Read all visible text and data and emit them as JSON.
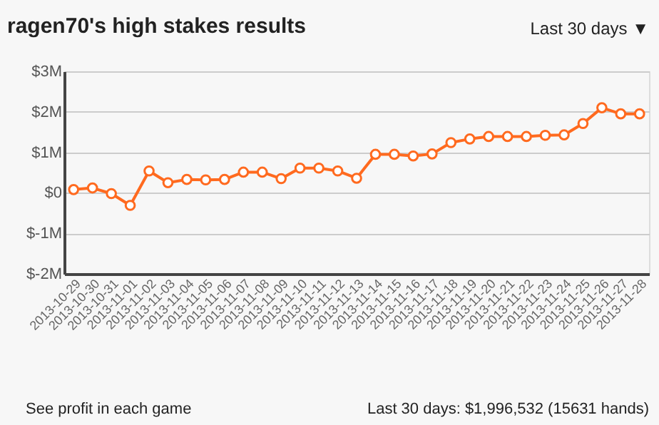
{
  "chart_data": {
    "type": "line",
    "title": "ragen70's high stakes results",
    "categories": [
      "2013-10-29",
      "2013-10-30",
      "2013-10-31",
      "2013-11-01",
      "2013-11-02",
      "2013-11-03",
      "2013-11-04",
      "2013-11-05",
      "2013-11-06",
      "2013-11-07",
      "2013-11-08",
      "2013-11-09",
      "2013-11-10",
      "2013-11-11",
      "2013-11-12",
      "2013-11-13",
      "2013-11-14",
      "2013-11-15",
      "2013-11-16",
      "2013-11-17",
      "2013-11-18",
      "2013-11-19",
      "2013-11-20",
      "2013-11-21",
      "2013-11-22",
      "2013-11-23",
      "2013-11-24",
      "2013-11-25",
      "2013-11-26",
      "2013-11-27",
      "2013-11-28"
    ],
    "series": [
      {
        "color": "#ff6a1f",
        "values": [
          0.08,
          0.12,
          -0.02,
          -0.31,
          0.54,
          0.25,
          0.33,
          0.32,
          0.33,
          0.51,
          0.51,
          0.35,
          0.61,
          0.61,
          0.54,
          0.36,
          0.95,
          0.95,
          0.91,
          0.96,
          1.24,
          1.33,
          1.39,
          1.39,
          1.39,
          1.42,
          1.43,
          1.71,
          2.1,
          1.95,
          1.95
        ]
      }
    ],
    "ylim": [
      -2,
      3
    ],
    "yticks": [
      {
        "value": -2,
        "label": "$-2M"
      },
      {
        "value": -1,
        "label": "$-1M"
      },
      {
        "value": 0,
        "label": "$0"
      },
      {
        "value": 1,
        "label": "$1M"
      },
      {
        "value": 2,
        "label": "$2M"
      },
      {
        "value": 3,
        "label": "$3M"
      }
    ],
    "grid": "y",
    "marker": "circle",
    "line_style": "solid",
    "annotations": [
      "Last 30 days ▼",
      "See profit in each game",
      "Last 30 days: $1,996,532 (15631 hands)"
    ]
  }
}
